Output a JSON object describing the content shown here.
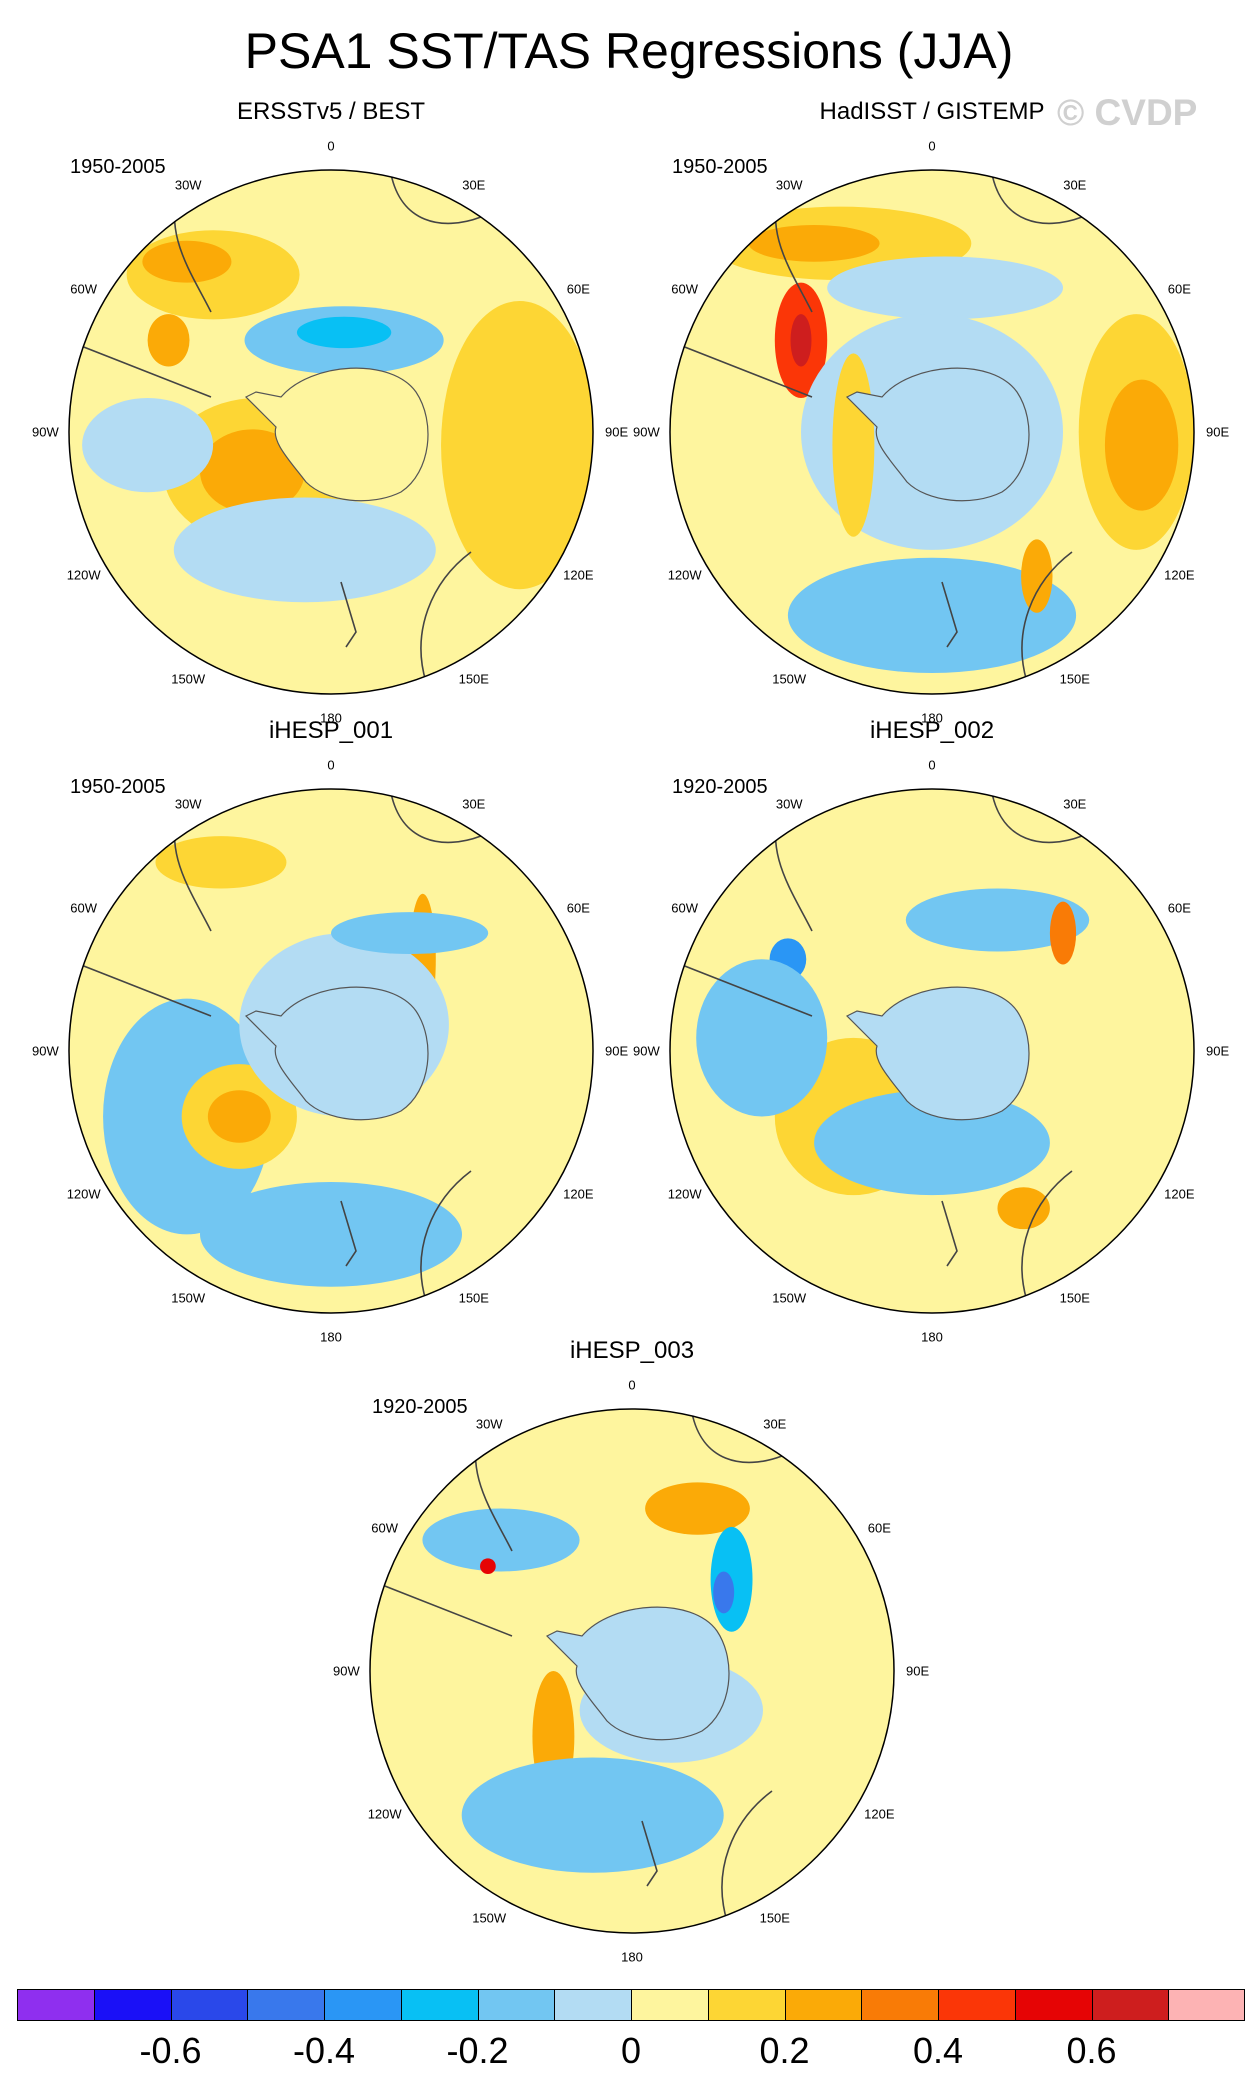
{
  "title": "PSA1 SST/TAS Regressions (JJA)",
  "watermark": "© CVDP",
  "lon_labels": [
    "0",
    "30E",
    "60E",
    "90E",
    "120E",
    "150E",
    "180",
    "150W",
    "120W",
    "90W",
    "60W",
    "30W"
  ],
  "panels": [
    {
      "title": "ERSSTv5 / BEST",
      "period": "1950-2005"
    },
    {
      "title": "HadISST / GISTEMP",
      "period": "1950-2005"
    },
    {
      "title": "iHESP_001",
      "period": "1950-2005"
    },
    {
      "title": "iHESP_002",
      "period": "1920-2005"
    },
    {
      "title": "iHESP_003",
      "period": "1920-2005"
    }
  ],
  "colorbar": {
    "colors": [
      "#8f2fef",
      "#1a10f7",
      "#2a48ea",
      "#3978ec",
      "#2a96f5",
      "#08c0f4",
      "#72c6f2",
      "#b3dcf3",
      "#fef59e",
      "#fdd634",
      "#fbaa07",
      "#f97b06",
      "#fb3607",
      "#e60405",
      "#ce1e1e",
      "#fdb3b4"
    ],
    "ticks": [
      "-0.6",
      "-0.4",
      "-0.2",
      "0",
      "0.2",
      "0.4",
      "0.6"
    ],
    "tick_values": [
      -0.6,
      -0.4,
      -0.2,
      0,
      0.2,
      0.4,
      0.6
    ],
    "levels": [
      -0.7,
      -0.6,
      -0.5,
      -0.4,
      -0.3,
      -0.2,
      -0.1,
      0,
      0.1,
      0.2,
      0.3,
      0.4,
      0.5,
      0.6,
      0.7
    ]
  }
}
